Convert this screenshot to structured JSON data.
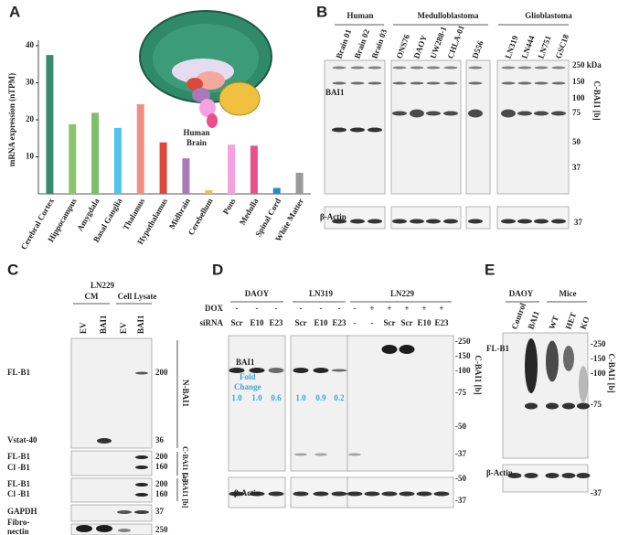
{
  "chart_data": {
    "type": "bar",
    "panel": "A",
    "ylabel": "mRNA expression (nTPM)",
    "categories": [
      "Cerebral Cortex",
      "Hippocampus",
      "Amygdala",
      "Basal Ganglia",
      "Thalamus",
      "Hypothalamus",
      "Midbrain",
      "Cerebellum",
      "Pons",
      "Medulla",
      "Spinal Cord",
      "White Matter"
    ],
    "values": [
      37.5,
      18.8,
      21.9,
      17.8,
      24.2,
      13.9,
      9.6,
      1.0,
      13.3,
      13.0,
      1.6,
      5.7
    ],
    "colors": [
      "#3a8a6e",
      "#8cc46a",
      "#80bf6a",
      "#4fc3ea",
      "#ef8f80",
      "#d94a3a",
      "#a97ab8",
      "#f0c040",
      "#f6a2e2",
      "#e8508a",
      "#1a8fd0",
      "#9a9a9a"
    ],
    "ylim": [
      0,
      40
    ],
    "yticks": [
      10,
      20,
      30,
      40
    ],
    "annotation": [
      "Human",
      "Brain"
    ]
  },
  "panels": {
    "B": {
      "label": "B",
      "groups": [
        "Human",
        "Medulloblastoma",
        "Glioblastoma"
      ],
      "lanes": [
        "Brain 01",
        "Brain 02",
        "Brain 03",
        "ONS76",
        "DAOY",
        "UW288-1",
        "CHLA-01",
        "D556",
        "LN319",
        "LN444",
        "LN751",
        "GSC18"
      ],
      "protein": "BAI1",
      "markers": [
        "250 kDa",
        "150",
        "100",
        "75",
        "50",
        "37"
      ],
      "side_label": "C-BAI1 [b]",
      "loading": "β-Actin",
      "loading_marker": "37"
    },
    "C": {
      "label": "C",
      "cell_line": "LN229",
      "groups": [
        "CM",
        "Cell Lysate"
      ],
      "lanes": [
        "EV",
        "BAI1",
        "EV",
        "BAI1"
      ],
      "rows": [
        "FL-B1",
        "Vstat-40",
        "FL-B1",
        "Cl -B1",
        "FL-B1",
        "Cl -B1",
        "GAPDH",
        [
          "Fibro-",
          "nectin"
        ]
      ],
      "markers": [
        "200",
        "36",
        "200",
        "160",
        "200",
        "160",
        "37",
        "250"
      ],
      "side_labels": [
        "N-BAI1",
        "C-BAI1 [a]",
        "C-BAI1 [b]"
      ]
    },
    "D": {
      "label": "D",
      "groups": [
        "DAOY",
        "LN319",
        "LN229"
      ],
      "row_labels": [
        "DOX",
        "siRNA"
      ],
      "dox": [
        "-",
        "-",
        "-",
        "-",
        "-",
        "-",
        "-",
        "+",
        "+",
        "+",
        "+",
        "+"
      ],
      "sirna": [
        "Scr",
        "E10",
        "E23",
        "Scr",
        "E10",
        "E23",
        "-",
        "-",
        "Scr",
        "Scr",
        "E10",
        "E23"
      ],
      "protein": "BAI1",
      "fold_change_label": [
        "Fold",
        "Change"
      ],
      "fold_change": [
        "1.0",
        "1.0",
        "0.6",
        "1.0",
        "0.9",
        "0.2"
      ],
      "markers": [
        "-250",
        "-150",
        "-100",
        "-75",
        "-50",
        "-37"
      ],
      "side_label": "C-BAI1 [b]",
      "loading": "β-Actin",
      "loading_markers": [
        "-50",
        "-37"
      ]
    },
    "E": {
      "label": "E",
      "groups": [
        "DAOY",
        "Mice"
      ],
      "lanes": [
        "Control",
        "BAI1",
        "WT",
        "HET",
        "KO"
      ],
      "protein": "FL-B1",
      "markers": [
        "-250",
        "-150",
        "-100",
        "-75"
      ],
      "side_label": "C-BAI1 [b]",
      "loading": "β-Actin",
      "loading_marker": "-37"
    }
  }
}
